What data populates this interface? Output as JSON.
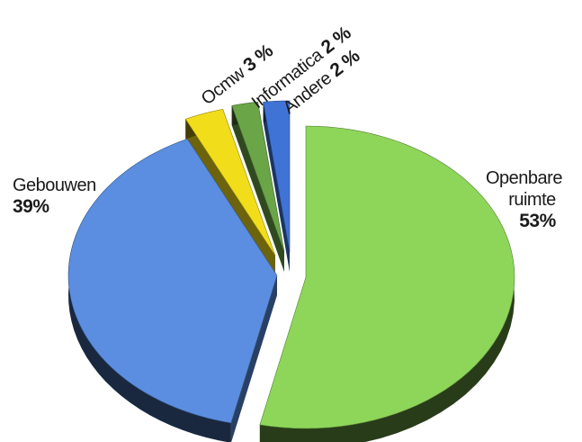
{
  "chart_data": {
    "type": "pie",
    "style": "3d-exploded",
    "slices": [
      {
        "label": "Openbare ruimte",
        "label_lines": [
          "Openbare",
          "ruimte"
        ],
        "value": 53,
        "value_text": "53%",
        "color": "#8ed65a"
      },
      {
        "label": "Gebouwen",
        "label_lines": [
          "Gebouwen"
        ],
        "value": 39,
        "value_text": "39%",
        "color": "#5b8ee0"
      },
      {
        "label": "Ocmw",
        "label_lines": [
          "Ocmw"
        ],
        "value": 3,
        "value_text": "3 %",
        "color": "#f2dd1a"
      },
      {
        "label": "Informatica",
        "label_lines": [
          "Informatica"
        ],
        "value": 2,
        "value_text": "2 %",
        "color": "#6aa548"
      },
      {
        "label": "Andere",
        "label_lines": [
          "Andere"
        ],
        "value": 2,
        "value_text": "2 %",
        "color": "#3f74d6"
      }
    ]
  }
}
